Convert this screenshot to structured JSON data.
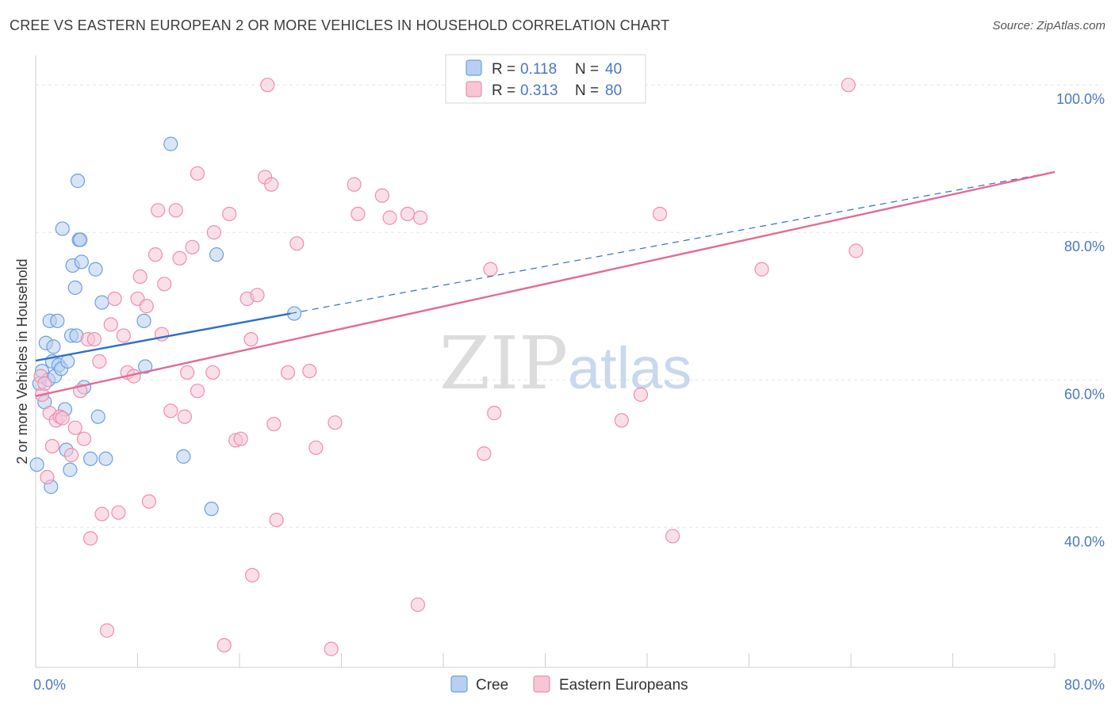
{
  "title": "CREE VS EASTERN EUROPEAN 2 OR MORE VEHICLES IN HOUSEHOLD CORRELATION CHART",
  "source": "Source: ZipAtlas.com",
  "watermark": {
    "zip": "ZIP",
    "atlas": "atlas"
  },
  "chart_data": {
    "type": "scatter",
    "ylabel": "2 or more Vehicles in Household",
    "xlim": [
      0,
      80
    ],
    "ylim": [
      21,
      104
    ],
    "x_ticks": [
      "0.0%",
      "80.0%"
    ],
    "y_ticks": [
      {
        "value": 40,
        "label": "40.0%"
      },
      {
        "value": 60,
        "label": "60.0%"
      },
      {
        "value": 80,
        "label": "80.0%"
      },
      {
        "value": 100,
        "label": "100.0%"
      }
    ],
    "legend": [
      {
        "r_label": "R =",
        "r": "0.118",
        "n_label": "N =",
        "n": "40"
      },
      {
        "r_label": "R =",
        "r": "0.313",
        "n_label": "N =",
        "n": "80"
      }
    ],
    "series": [
      {
        "name": "Cree",
        "color": "#6f9fe0",
        "fill": "#b7cff1",
        "line_color": "#2f6fcc",
        "trend": {
          "x0": 0,
          "y0": 62.6,
          "x1": 20,
          "y1": 69.0,
          "dash_to_x": 80,
          "dash_to_y": 88.2
        },
        "points": [
          [
            0.1,
            48.5
          ],
          [
            0.3,
            59.5
          ],
          [
            0.5,
            61.2
          ],
          [
            0.7,
            57.0
          ],
          [
            0.8,
            65.0
          ],
          [
            1.0,
            60.0
          ],
          [
            1.1,
            68.0
          ],
          [
            1.2,
            45.5
          ],
          [
            1.3,
            62.5
          ],
          [
            1.4,
            64.5
          ],
          [
            1.5,
            60.5
          ],
          [
            1.7,
            68.0
          ],
          [
            1.8,
            62.0
          ],
          [
            2.0,
            61.5
          ],
          [
            2.1,
            80.5
          ],
          [
            2.3,
            56.0
          ],
          [
            2.4,
            50.5
          ],
          [
            2.5,
            62.5
          ],
          [
            2.7,
            47.8
          ],
          [
            2.8,
            66.0
          ],
          [
            2.9,
            75.5
          ],
          [
            3.1,
            72.5
          ],
          [
            3.2,
            66.0
          ],
          [
            3.3,
            87.0
          ],
          [
            3.4,
            79.0
          ],
          [
            3.5,
            79.0
          ],
          [
            3.6,
            76.0
          ],
          [
            3.8,
            59.0
          ],
          [
            4.3,
            49.3
          ],
          [
            4.7,
            75.0
          ],
          [
            4.9,
            55.0
          ],
          [
            5.2,
            70.5
          ],
          [
            5.5,
            49.3
          ],
          [
            8.5,
            68.0
          ],
          [
            8.6,
            61.8
          ],
          [
            10.6,
            92.0
          ],
          [
            11.6,
            49.6
          ],
          [
            13.8,
            42.5
          ],
          [
            14.2,
            77.0
          ],
          [
            20.3,
            69.0
          ]
        ]
      },
      {
        "name": "Eastern Europeans",
        "color": "#ec8fab",
        "fill": "#f8c5d5",
        "line_color": "#e36b93",
        "trend": {
          "x0": 0,
          "y0": 57.8,
          "x1": 80,
          "y1": 88.2
        },
        "points": [
          [
            0.4,
            60.5
          ],
          [
            0.5,
            58.0
          ],
          [
            0.7,
            59.5
          ],
          [
            0.9,
            46.8
          ],
          [
            1.1,
            55.5
          ],
          [
            1.3,
            51.0
          ],
          [
            1.6,
            54.5
          ],
          [
            1.9,
            55.0
          ],
          [
            2.1,
            54.8
          ],
          [
            2.8,
            49.8
          ],
          [
            3.1,
            53.5
          ],
          [
            3.5,
            58.5
          ],
          [
            3.8,
            52.0
          ],
          [
            4.1,
            65.5
          ],
          [
            4.3,
            38.5
          ],
          [
            4.6,
            65.5
          ],
          [
            5.0,
            62.5
          ],
          [
            5.2,
            41.8
          ],
          [
            5.6,
            26.0
          ],
          [
            5.9,
            67.5
          ],
          [
            6.2,
            71.0
          ],
          [
            6.5,
            42.0
          ],
          [
            6.9,
            66.0
          ],
          [
            7.2,
            61.0
          ],
          [
            7.7,
            60.5
          ],
          [
            8.0,
            71.0
          ],
          [
            8.2,
            74.0
          ],
          [
            8.7,
            70.0
          ],
          [
            8.9,
            43.5
          ],
          [
            9.4,
            77.0
          ],
          [
            9.6,
            83.0
          ],
          [
            9.9,
            66.2
          ],
          [
            10.1,
            73.0
          ],
          [
            10.6,
            55.8
          ],
          [
            11.0,
            83.0
          ],
          [
            11.3,
            76.5
          ],
          [
            11.7,
            55.0
          ],
          [
            11.9,
            61.0
          ],
          [
            12.3,
            78.0
          ],
          [
            12.7,
            88.0
          ],
          [
            12.7,
            58.5
          ],
          [
            13.9,
            61.0
          ],
          [
            14.0,
            80.0
          ],
          [
            14.8,
            24.0
          ],
          [
            15.2,
            82.5
          ],
          [
            15.7,
            51.8
          ],
          [
            16.1,
            52.0
          ],
          [
            16.6,
            71.0
          ],
          [
            16.9,
            65.5
          ],
          [
            17.0,
            33.5
          ],
          [
            17.4,
            71.5
          ],
          [
            18.0,
            87.5
          ],
          [
            18.2,
            100.0
          ],
          [
            18.5,
            86.5
          ],
          [
            18.7,
            54.0
          ],
          [
            18.9,
            41.0
          ],
          [
            19.8,
            61.0
          ],
          [
            20.5,
            78.5
          ],
          [
            21.5,
            61.2
          ],
          [
            22.0,
            50.8
          ],
          [
            23.2,
            23.5
          ],
          [
            23.5,
            54.2
          ],
          [
            25.0,
            86.5
          ],
          [
            25.3,
            82.5
          ],
          [
            27.2,
            85.0
          ],
          [
            27.8,
            82.0
          ],
          [
            29.2,
            82.5
          ],
          [
            30.0,
            29.5
          ],
          [
            30.2,
            82.0
          ],
          [
            35.2,
            50.0
          ],
          [
            35.7,
            75.0
          ],
          [
            36.0,
            55.5
          ],
          [
            37.0,
            100.0
          ],
          [
            46.0,
            54.5
          ],
          [
            47.5,
            58.0
          ],
          [
            49.0,
            82.5
          ],
          [
            50.0,
            38.8
          ],
          [
            57.0,
            75.0
          ],
          [
            63.8,
            100.0
          ],
          [
            64.4,
            77.5
          ]
        ]
      }
    ]
  }
}
